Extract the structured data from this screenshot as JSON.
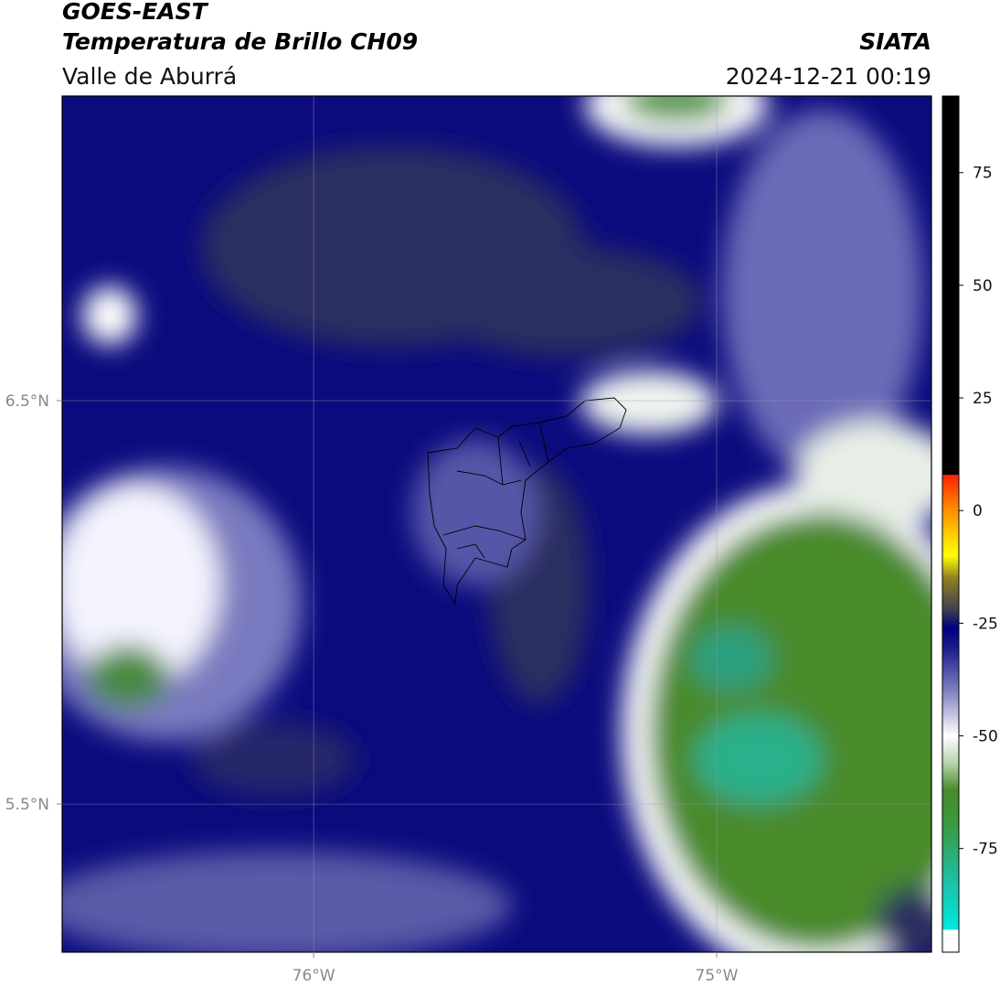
{
  "header": {
    "title": "GOES-EAST",
    "subtitle": "Temperatura de Brillo CH09",
    "source": "SIATA",
    "region": "Valle de Aburrá",
    "datetime": "2024-12-21 00:19"
  },
  "map": {
    "xlim": [
      -76.624,
      -74.467
    ],
    "ylim": [
      5.133,
      7.255
    ],
    "xticks": [
      {
        "value": -76,
        "label": "76°W"
      },
      {
        "value": -75,
        "label": "75°W"
      }
    ],
    "yticks": [
      {
        "value": 6.5,
        "label": "6.5°N"
      },
      {
        "value": 5.5,
        "label": "5.5°N"
      }
    ],
    "grid": true
  },
  "colorbar": {
    "lim": [
      -98,
      92
    ],
    "ticks": [
      75,
      50,
      25,
      0,
      -25,
      -50,
      -75
    ],
    "colormap": [
      {
        "value": -98,
        "color": "#ffffff"
      },
      {
        "value": -93,
        "color": "#ffffff"
      },
      {
        "value": -93,
        "color": "#00e8e0"
      },
      {
        "value": -80,
        "color": "#22b898"
      },
      {
        "value": -70,
        "color": "#3a9a40"
      },
      {
        "value": -62,
        "color": "#4a8a2a"
      },
      {
        "value": -56,
        "color": "#b8d4b0"
      },
      {
        "value": -50,
        "color": "#ffffff"
      },
      {
        "value": -40,
        "color": "#8080c0"
      },
      {
        "value": -31,
        "color": "#202090"
      },
      {
        "value": -26,
        "color": "#000080"
      },
      {
        "value": -22,
        "color": "#404050"
      },
      {
        "value": -15,
        "color": "#908020"
      },
      {
        "value": -10,
        "color": "#ffff00"
      },
      {
        "value": 0,
        "color": "#ff9000"
      },
      {
        "value": 8,
        "color": "#ff2000"
      },
      {
        "value": 8,
        "color": "#000000"
      },
      {
        "value": 92,
        "color": "#000000"
      }
    ]
  }
}
